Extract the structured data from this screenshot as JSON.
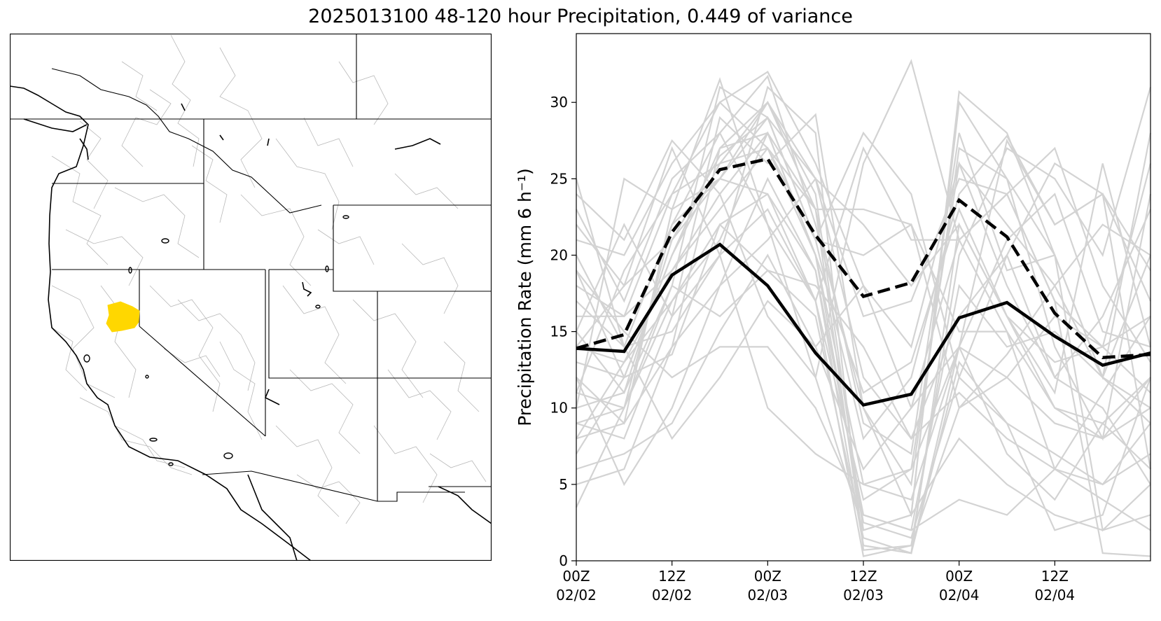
{
  "figure": {
    "title": "2025013100 48-120 hour Precipitation, 0.449 of variance"
  },
  "map": {
    "name": "western-us-basin-map",
    "highlight_color": "#FFD700",
    "boundary_color": "#000000",
    "basin_color": "#b9b9b9"
  },
  "chart_data": {
    "type": "line",
    "title": "2025013100 48-120 hour Precipitation, 0.449 of variance",
    "xlabel": "",
    "ylabel": "Precipitation Rate (mm 6 h⁻¹)",
    "ylim": [
      0,
      34.5
    ],
    "x": [
      0,
      6,
      12,
      18,
      24,
      30,
      36,
      42,
      48,
      54,
      60,
      66,
      72
    ],
    "xlim": [
      0,
      72
    ],
    "yticks": [
      0,
      5,
      10,
      15,
      20,
      25,
      30
    ],
    "xticks": [
      {
        "pos": 0,
        "label_time": "00Z",
        "label_date": "02/02"
      },
      {
        "pos": 12,
        "label_time": "12Z",
        "label_date": "02/02"
      },
      {
        "pos": 24,
        "label_time": "00Z",
        "label_date": "02/03"
      },
      {
        "pos": 36,
        "label_time": "12Z",
        "label_date": "02/03"
      },
      {
        "pos": 48,
        "label_time": "00Z",
        "label_date": "02/04"
      },
      {
        "pos": 60,
        "label_time": "12Z",
        "label_date": "02/04"
      }
    ],
    "mean": {
      "name": "ensemble-mean",
      "color": "#000000",
      "style": "solid",
      "values": [
        13.9,
        13.7,
        18.7,
        20.7,
        18.0,
        13.6,
        10.2,
        10.9,
        15.9,
        16.9,
        14.7,
        12.8,
        13.6
      ]
    },
    "mean_plus_std": {
      "name": "mean-plus-std",
      "color": "#000000",
      "style": "dashed",
      "values": [
        13.9,
        14.8,
        21.5,
        25.6,
        26.3,
        21.3,
        17.3,
        18.2,
        23.6,
        21.2,
        16.2,
        13.3,
        13.5
      ]
    },
    "members_color": "#d3d3d3",
    "members": [
      [
        13.0,
        12.0,
        20.0,
        27.0,
        30.0,
        25.0,
        16.0,
        17.0,
        25.0,
        24.0,
        17.0,
        14.0,
        16.0
      ],
      [
        24.0,
        21.0,
        27.5,
        24.0,
        28.0,
        20.0,
        5.0,
        4.0,
        14.0,
        21.0,
        24.0,
        15.0,
        14.0
      ],
      [
        10.0,
        25.0,
        23.0,
        31.5,
        22.0,
        12.0,
        26.0,
        32.7,
        21.0,
        15.0,
        6.0,
        4.0,
        2.0
      ],
      [
        3.5,
        10.0,
        18.0,
        31.0,
        29.0,
        21.0,
        28.0,
        24.0,
        12.0,
        9.0,
        2.0,
        3.0,
        12.0
      ],
      [
        25.0,
        14.0,
        22.0,
        28.0,
        31.7,
        22.0,
        10.0,
        3.0,
        30.7,
        28.0,
        20.0,
        12.0,
        28.0
      ],
      [
        12.0,
        5.0,
        10.0,
        18.0,
        25.0,
        19.0,
        1.0,
        0.5,
        14.0,
        27.5,
        22.0,
        24.0,
        6.0
      ],
      [
        22.0,
        18.0,
        27.0,
        20.0,
        31.0,
        28.0,
        0.7,
        1.0,
        20.0,
        27.0,
        25.0,
        20.0,
        31.0
      ],
      [
        9.0,
        8.0,
        16.0,
        29.0,
        26.0,
        29.2,
        10.0,
        5.0,
        27.0,
        25.0,
        14.0,
        8.0,
        24.0
      ],
      [
        19.0,
        12.0,
        13.5,
        22.0,
        19.0,
        16.0,
        1.5,
        0.5,
        22.0,
        16.0,
        11.0,
        26.0,
        14.0
      ],
      [
        16.0,
        16.0,
        24.0,
        26.0,
        30.0,
        24.0,
        2.0,
        3.0,
        30.0,
        25.0,
        20.0,
        2.0,
        5.0
      ],
      [
        11.0,
        10.0,
        17.0,
        22.0,
        24.0,
        17.0,
        27.0,
        21.0,
        21.0,
        24.0,
        17.0,
        0.5,
        0.3
      ],
      [
        15.0,
        22.0,
        16.0,
        20.0,
        10.0,
        7.0,
        5.0,
        6.0,
        14.0,
        12.0,
        9.0,
        8.0,
        12.0
      ],
      [
        8.0,
        9.0,
        14.0,
        27.0,
        28.0,
        20.0,
        2.5,
        1.5,
        12.0,
        20.0,
        26.0,
        24.0,
        19.0
      ],
      [
        20.0,
        14.0,
        15.0,
        20.0,
        23.0,
        17.0,
        0.3,
        1.0,
        10.0,
        13.5,
        18.0,
        12.0,
        20.0
      ],
      [
        7.0,
        12.0,
        20.0,
        26.0,
        27.0,
        23.0,
        23.0,
        22.0,
        15.0,
        15.0,
        10.0,
        8.0,
        10.0
      ],
      [
        14.0,
        18.0,
        21.0,
        25.0,
        24.0,
        19.0,
        3.0,
        2.0,
        18.0,
        14.0,
        15.0,
        12.0,
        10.0
      ],
      [
        21.0,
        20.0,
        26.0,
        30.0,
        27.0,
        21.0,
        20.0,
        22.0,
        10.0,
        12.0,
        16.0,
        14.0,
        26.0
      ],
      [
        12.0,
        9.0,
        23.0,
        25.0,
        29.0,
        21.0,
        8.0,
        12.0,
        24.0,
        27.8,
        22.0,
        24.0,
        17.0
      ],
      [
        17.0,
        14.0,
        8.0,
        12.0,
        17.0,
        14.0,
        18.0,
        10.0,
        14.0,
        7.0,
        4.0,
        9.0,
        6.0
      ],
      [
        5.0,
        6.0,
        14.0,
        18.0,
        21.0,
        25.0,
        12.0,
        8.0,
        16.0,
        20.0,
        12.0,
        10.0,
        5.0
      ],
      [
        23.0,
        17.0,
        25.0,
        28.0,
        22.0,
        17.0,
        4.0,
        6.0,
        26.0,
        22.0,
        18.0,
        22.0,
        20.0
      ],
      [
        10.0,
        11.0,
        21.0,
        26.5,
        29.0,
        25.0,
        22.0,
        18.0,
        22.0,
        16.0,
        10.0,
        9.0,
        12.0
      ],
      [
        18.0,
        16.0,
        19.0,
        24.0,
        16.0,
        12.0,
        2.0,
        3.0,
        8.0,
        5.0,
        3.0,
        2.0,
        3.0
      ],
      [
        6.0,
        7.0,
        9.0,
        15.0,
        20.0,
        14.0,
        6.0,
        10.0,
        21.0,
        24.0,
        27.0,
        18.0,
        13.0
      ],
      [
        14.0,
        13.0,
        17.0,
        21.0,
        28.0,
        23.0,
        1.0,
        0.5,
        13.0,
        9.0,
        7.0,
        5.0,
        7.0
      ],
      [
        11.0,
        19.0,
        24.0,
        30.0,
        32.0,
        26.0,
        18.0,
        14.0,
        26.0,
        18.0,
        12.0,
        16.0,
        23.0
      ],
      [
        9.0,
        10.0,
        22.0,
        25.0,
        30.0,
        23.0,
        9.0,
        7.0,
        28.0,
        19.0,
        20.0,
        12.0,
        9.0
      ],
      [
        15.0,
        11.0,
        18.0,
        16.0,
        19.0,
        18.0,
        14.0,
        8.0,
        11.0,
        8.0,
        6.0,
        11.0,
        16.0
      ],
      [
        19.0,
        15.0,
        12.0,
        14.0,
        14.0,
        10.0,
        3.0,
        2.0,
        4.0,
        3.0,
        6.0,
        5.0,
        9.0
      ],
      [
        8.0,
        13.0,
        19.0,
        23.0,
        27.0,
        20.0,
        11.0,
        13.0,
        23.0,
        16.0,
        13.0,
        14.0,
        11.0
      ]
    ]
  }
}
